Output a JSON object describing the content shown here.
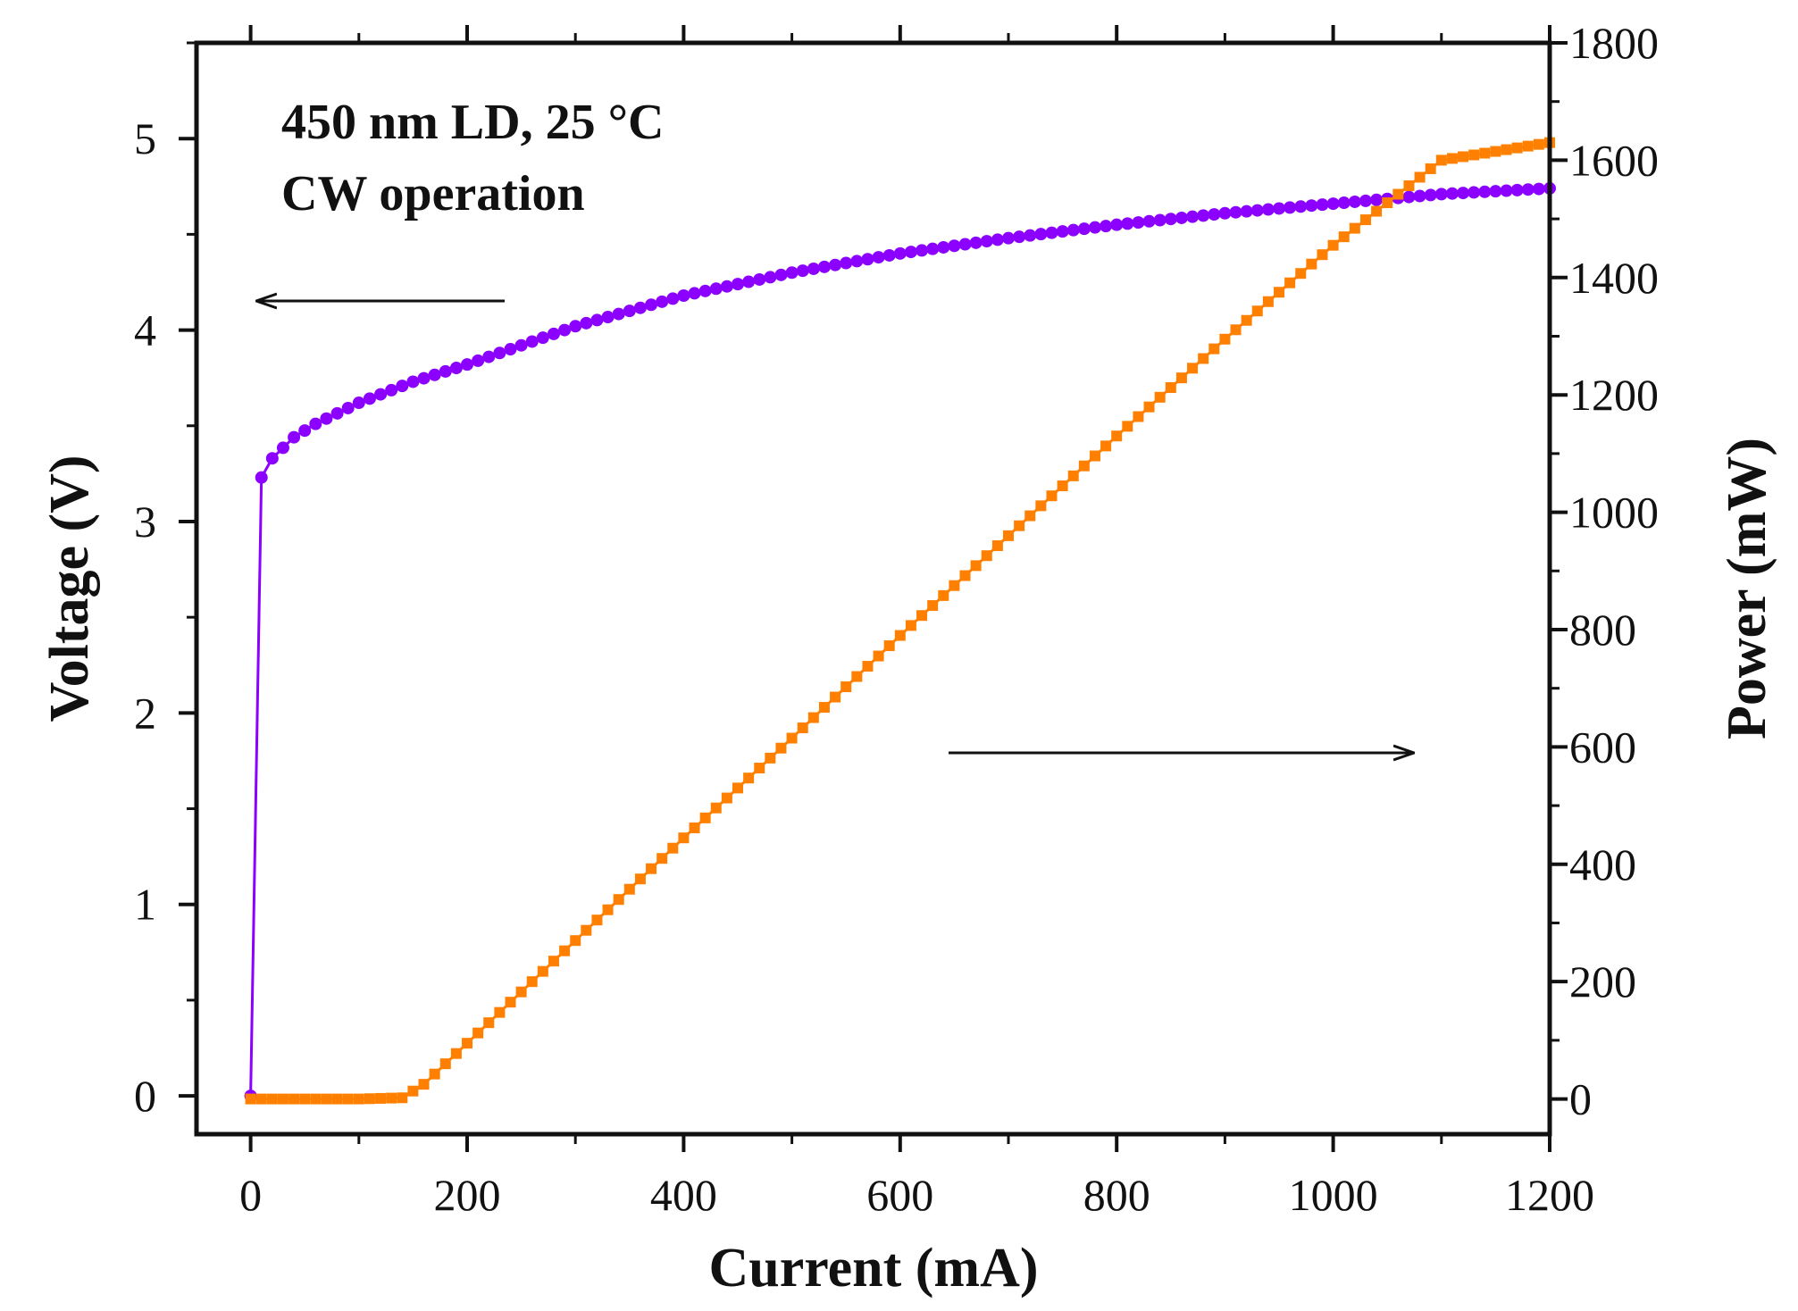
{
  "chart_data": {
    "type": "line",
    "x_axis": {
      "label": "Current (mA)",
      "range": [
        -50,
        1200
      ],
      "ticks": [
        0,
        200,
        400,
        600,
        800,
        1000,
        1200
      ]
    },
    "y_left": {
      "label": "Voltage (V)",
      "range": [
        -0.2,
        5.5
      ],
      "ticks": [
        0,
        1,
        2,
        3,
        4,
        5
      ]
    },
    "y_right": {
      "label": "Power (mW)",
      "range": [
        -60,
        1800
      ],
      "ticks": [
        0,
        200,
        400,
        600,
        800,
        1000,
        1200,
        1400,
        1600,
        1800
      ]
    },
    "annotations": [
      "450 nm LD, 25 °C",
      "CW operation"
    ],
    "series": [
      {
        "name": "Voltage",
        "axis": "left",
        "color": "#8B00FF",
        "x": [
          0,
          10,
          20,
          40,
          60,
          100,
          150,
          200,
          250,
          300,
          400,
          500,
          600,
          700,
          800,
          900,
          1000,
          1100,
          1200
        ],
        "values": [
          0,
          3.23,
          3.33,
          3.44,
          3.51,
          3.62,
          3.73,
          3.82,
          3.92,
          4.02,
          4.18,
          4.3,
          4.4,
          4.48,
          4.55,
          4.61,
          4.66,
          4.71,
          4.74
        ]
      },
      {
        "name": "Power",
        "axis": "right",
        "color": "#FF8000",
        "x": [
          0,
          50,
          100,
          140,
          160,
          200,
          300,
          400,
          500,
          600,
          700,
          800,
          900,
          1000,
          1100,
          1200
        ],
        "values": [
          0,
          0,
          0,
          2,
          25,
          95,
          270,
          445,
          615,
          790,
          960,
          1130,
          1295,
          1455,
          1600,
          1630
        ]
      }
    ]
  }
}
